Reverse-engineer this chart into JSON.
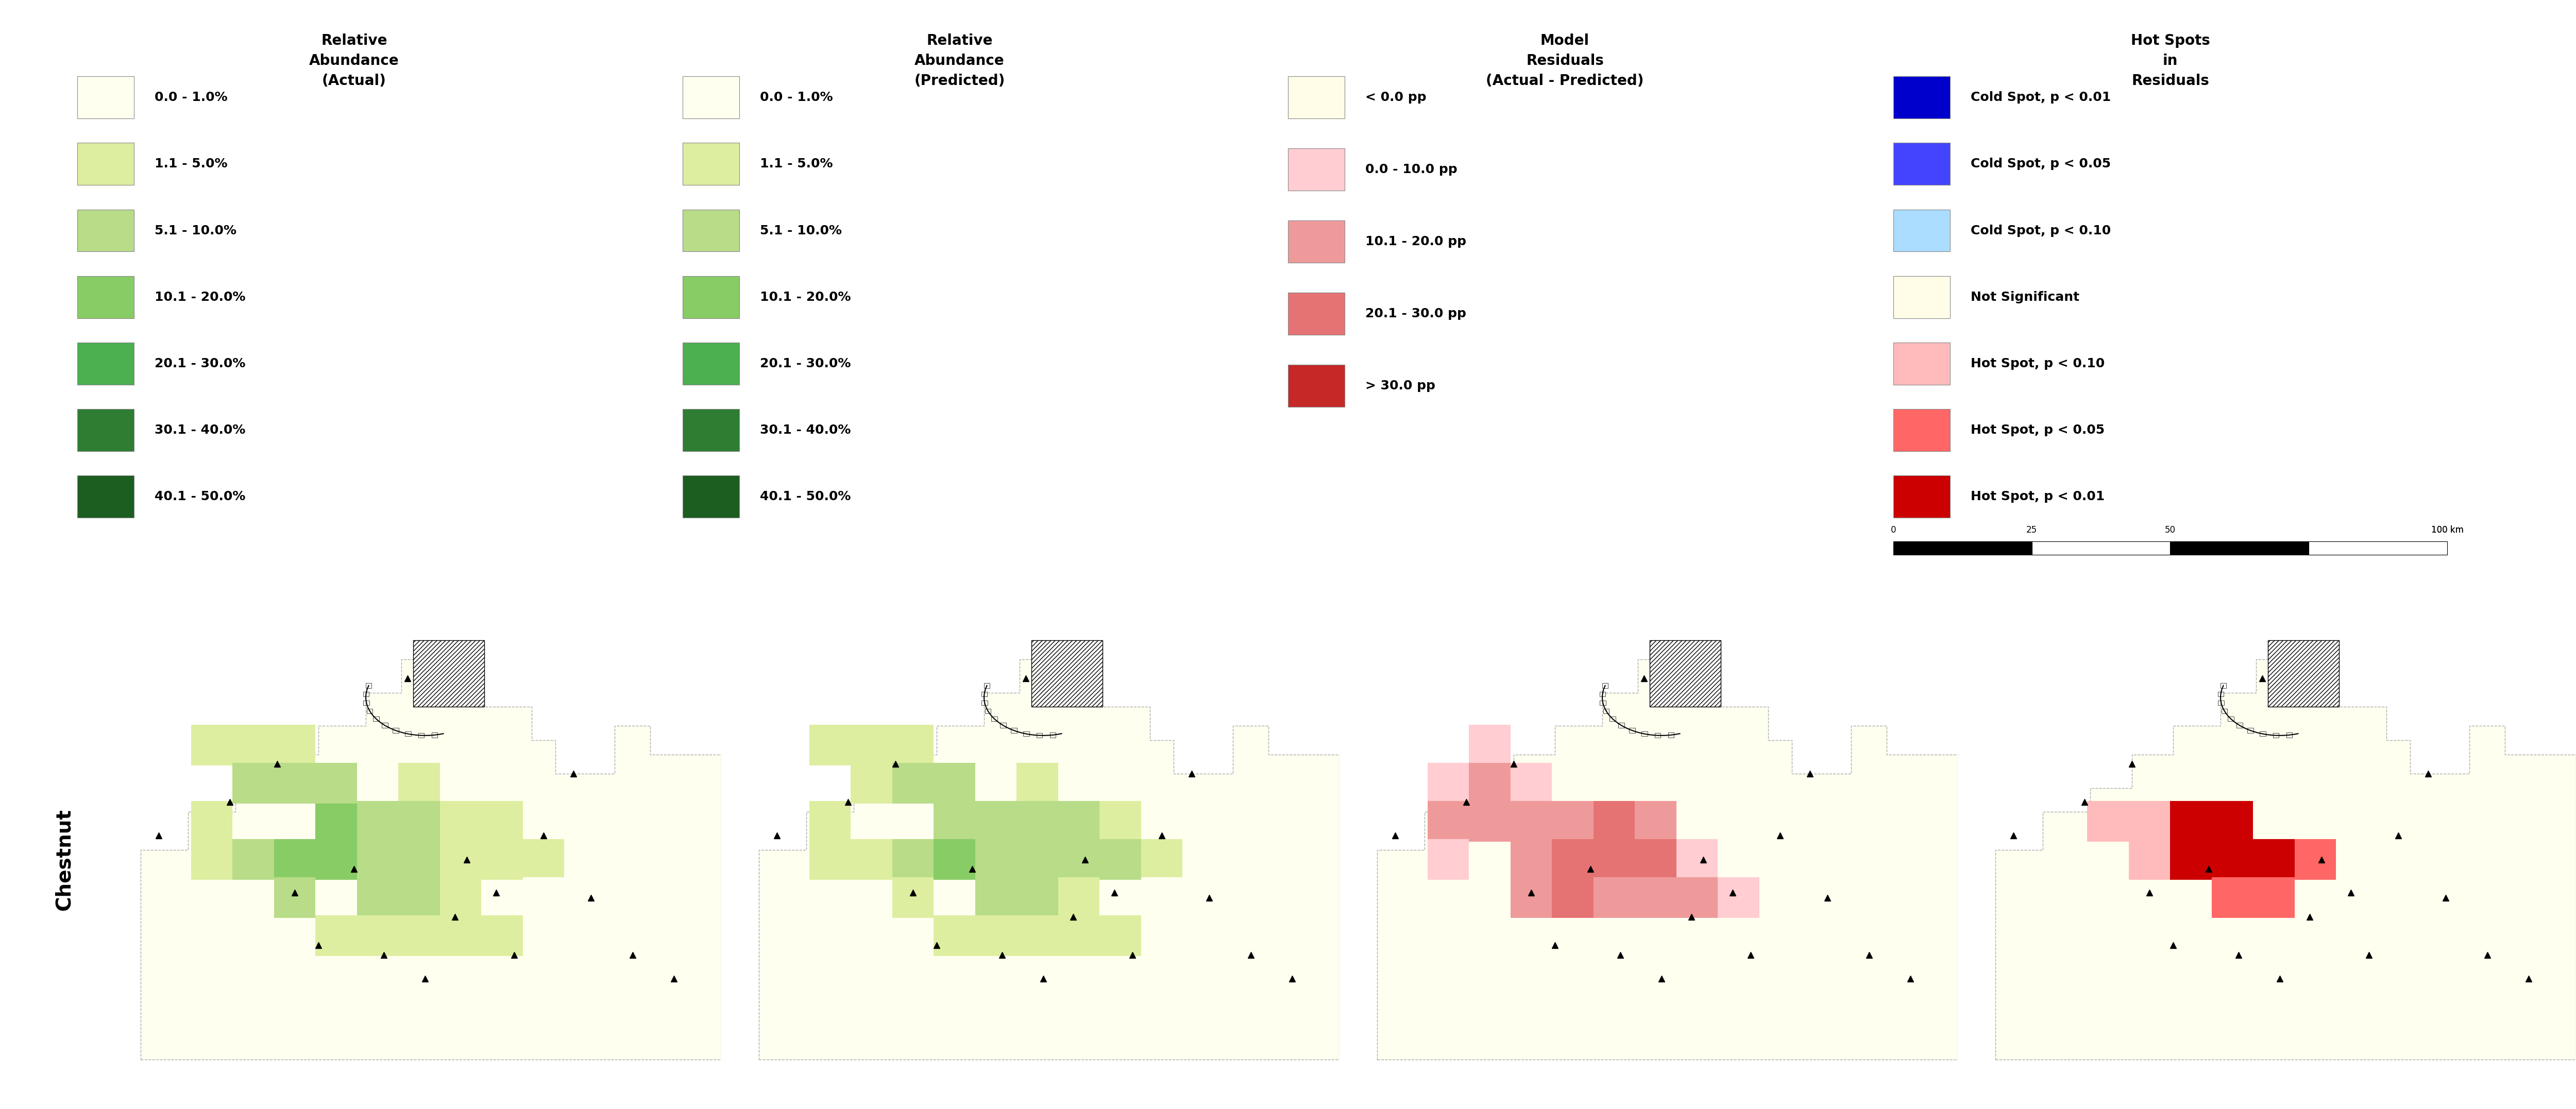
{
  "legend1_title": "Relative\nAbundance\n(Actual)",
  "legend2_title": "Relative\nAbundance\n(Predicted)",
  "legend3_title": "Model\nResiduals\n(Actual - Predicted)",
  "legend4_title": "Hot Spots\nin\nResiduals",
  "abundance_labels": [
    "0.0 - 1.0%",
    "1.1 - 5.0%",
    "5.1 - 10.0%",
    "10.1 - 20.0%",
    "20.1 - 30.0%",
    "30.1 - 40.0%",
    "40.1 - 50.0%"
  ],
  "abundance_colors": [
    "#FFFFF0",
    "#DDEEA0",
    "#B8DC88",
    "#88CC66",
    "#4CAF50",
    "#2E7D32",
    "#1B5E20"
  ],
  "residual_labels": [
    "< 0.0 pp",
    "0.0 - 10.0 pp",
    "10.1 - 20.0 pp",
    "20.1 - 30.0 pp",
    "> 30.0 pp"
  ],
  "residual_colors": [
    "#FFFDE7",
    "#FFCDD2",
    "#EF9A9A",
    "#E57373",
    "#C62828"
  ],
  "hotspot_labels": [
    "Cold Spot, p < 0.01",
    "Cold Spot, p < 0.05",
    "Cold Spot, p < 0.10",
    "Not Significant",
    "Hot Spot, p < 0.10",
    "Hot Spot, p < 0.05",
    "Hot Spot, p < 0.01"
  ],
  "hotspot_colors": [
    "#0000CC",
    "#4444FF",
    "#AADDFF",
    "#FFFDE7",
    "#FFBBBB",
    "#FF6666",
    "#CC0000"
  ],
  "species_label": "Chestnut",
  "background_color": "#FFFFFF",
  "map_bg_color": "#FFFFF0",
  "map_border_color": "#AAAAAA"
}
